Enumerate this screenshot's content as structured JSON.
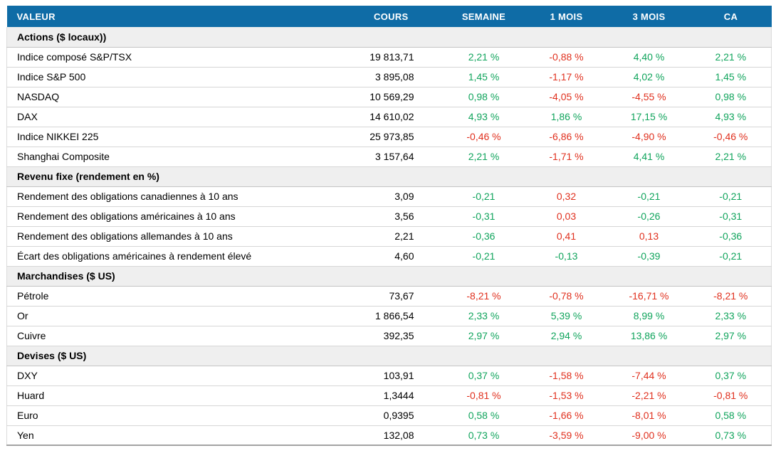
{
  "theme": {
    "header_bg": "#0f6ca6",
    "header_text": "#ffffff",
    "section_bg": "#efefef",
    "positive_color": "#10a45c",
    "negative_color": "#e0301e"
  },
  "table": {
    "columns": [
      "VALEUR",
      "COURS",
      "SEMAINE",
      "1 MOIS",
      "3 MOIS",
      "CA"
    ],
    "sections": [
      {
        "title": "Actions ($ locaux))",
        "rows": [
          {
            "label": "Indice composé S&P/TSX",
            "cours": "19 813,71",
            "cells": [
              {
                "text": "2,21 %",
                "dir": "up"
              },
              {
                "text": "-0,88 %",
                "dir": "down"
              },
              {
                "text": "4,40 %",
                "dir": "up"
              },
              {
                "text": "2,21 %",
                "dir": "up"
              }
            ]
          },
          {
            "label": "Indice S&P 500",
            "cours": "3 895,08",
            "cells": [
              {
                "text": "1,45 %",
                "dir": "up"
              },
              {
                "text": "-1,17 %",
                "dir": "down"
              },
              {
                "text": "4,02 %",
                "dir": "up"
              },
              {
                "text": "1,45 %",
                "dir": "up"
              }
            ]
          },
          {
            "label": "NASDAQ",
            "cours": "10 569,29",
            "cells": [
              {
                "text": "0,98 %",
                "dir": "up"
              },
              {
                "text": "-4,05 %",
                "dir": "down"
              },
              {
                "text": "-4,55 %",
                "dir": "down"
              },
              {
                "text": "0,98 %",
                "dir": "up"
              }
            ]
          },
          {
            "label": "DAX",
            "cours": "14 610,02",
            "cells": [
              {
                "text": "4,93 %",
                "dir": "up"
              },
              {
                "text": "1,86 %",
                "dir": "up"
              },
              {
                "text": "17,15 %",
                "dir": "up"
              },
              {
                "text": "4,93 %",
                "dir": "up"
              }
            ]
          },
          {
            "label": "Indice NIKKEI 225",
            "cours": "25 973,85",
            "cells": [
              {
                "text": "-0,46 %",
                "dir": "down"
              },
              {
                "text": "-6,86 %",
                "dir": "down"
              },
              {
                "text": "-4,90 %",
                "dir": "down"
              },
              {
                "text": "-0,46 %",
                "dir": "down"
              }
            ]
          },
          {
            "label": "Shanghai Composite",
            "cours": "3 157,64",
            "cells": [
              {
                "text": "2,21 %",
                "dir": "up"
              },
              {
                "text": "-1,71 %",
                "dir": "down"
              },
              {
                "text": "4,41 %",
                "dir": "up"
              },
              {
                "text": "2,21 %",
                "dir": "up"
              }
            ]
          }
        ]
      },
      {
        "title": "Revenu fixe (rendement en %)",
        "rows": [
          {
            "label": "Rendement des obligations canadiennes à 10 ans",
            "cours": "3,09",
            "cells": [
              {
                "text": "-0,21",
                "dir": "up"
              },
              {
                "text": "0,32",
                "dir": "down"
              },
              {
                "text": "-0,21",
                "dir": "up"
              },
              {
                "text": "-0,21",
                "dir": "up"
              }
            ]
          },
          {
            "label": "Rendement des obligations américaines à 10 ans",
            "cours": "3,56",
            "cells": [
              {
                "text": "-0,31",
                "dir": "up"
              },
              {
                "text": "0,03",
                "dir": "down"
              },
              {
                "text": "-0,26",
                "dir": "up"
              },
              {
                "text": "-0,31",
                "dir": "up"
              }
            ]
          },
          {
            "label": "Rendement des obligations allemandes à 10 ans",
            "cours": "2,21",
            "cells": [
              {
                "text": "-0,36",
                "dir": "up"
              },
              {
                "text": "0,41",
                "dir": "down"
              },
              {
                "text": "0,13",
                "dir": "down"
              },
              {
                "text": "-0,36",
                "dir": "up"
              }
            ]
          },
          {
            "label": "Écart des obligations américaines à rendement élevé",
            "cours": "4,60",
            "cells": [
              {
                "text": "-0,21",
                "dir": "up"
              },
              {
                "text": "-0,13",
                "dir": "up"
              },
              {
                "text": "-0,39",
                "dir": "up"
              },
              {
                "text": "-0,21",
                "dir": "up"
              }
            ]
          }
        ]
      },
      {
        "title": "Marchandises ($ US)",
        "rows": [
          {
            "label": "Pétrole",
            "cours": "73,67",
            "cells": [
              {
                "text": "-8,21 %",
                "dir": "down"
              },
              {
                "text": "-0,78 %",
                "dir": "down"
              },
              {
                "text": "-16,71 %",
                "dir": "down"
              },
              {
                "text": "-8,21 %",
                "dir": "down"
              }
            ]
          },
          {
            "label": "Or",
            "cours": "1 866,54",
            "cells": [
              {
                "text": "2,33 %",
                "dir": "up"
              },
              {
                "text": "5,39 %",
                "dir": "up"
              },
              {
                "text": "8,99 %",
                "dir": "up"
              },
              {
                "text": "2,33 %",
                "dir": "up"
              }
            ]
          },
          {
            "label": "Cuivre",
            "cours": "392,35",
            "cells": [
              {
                "text": "2,97 %",
                "dir": "up"
              },
              {
                "text": "2,94 %",
                "dir": "up"
              },
              {
                "text": "13,86 %",
                "dir": "up"
              },
              {
                "text": "2,97 %",
                "dir": "up"
              }
            ]
          }
        ]
      },
      {
        "title": "Devises ($ US)",
        "rows": [
          {
            "label": "DXY",
            "cours": "103,91",
            "cells": [
              {
                "text": "0,37 %",
                "dir": "up"
              },
              {
                "text": "-1,58 %",
                "dir": "down"
              },
              {
                "text": "-7,44 %",
                "dir": "down"
              },
              {
                "text": "0,37 %",
                "dir": "up"
              }
            ]
          },
          {
            "label": "Huard",
            "cours": "1,3444",
            "cells": [
              {
                "text": "-0,81 %",
                "dir": "down"
              },
              {
                "text": "-1,53 %",
                "dir": "down"
              },
              {
                "text": "-2,21 %",
                "dir": "down"
              },
              {
                "text": "-0,81 %",
                "dir": "down"
              }
            ]
          },
          {
            "label": "Euro",
            "cours": "0,9395",
            "cells": [
              {
                "text": "0,58 %",
                "dir": "up"
              },
              {
                "text": "-1,66 %",
                "dir": "down"
              },
              {
                "text": "-8,01 %",
                "dir": "down"
              },
              {
                "text": "0,58 %",
                "dir": "up"
              }
            ]
          },
          {
            "label": "Yen",
            "cours": "132,08",
            "cells": [
              {
                "text": "0,73 %",
                "dir": "up"
              },
              {
                "text": "-3,59 %",
                "dir": "down"
              },
              {
                "text": "-9,00 %",
                "dir": "down"
              },
              {
                "text": "0,73 %",
                "dir": "up"
              }
            ]
          }
        ]
      }
    ]
  }
}
